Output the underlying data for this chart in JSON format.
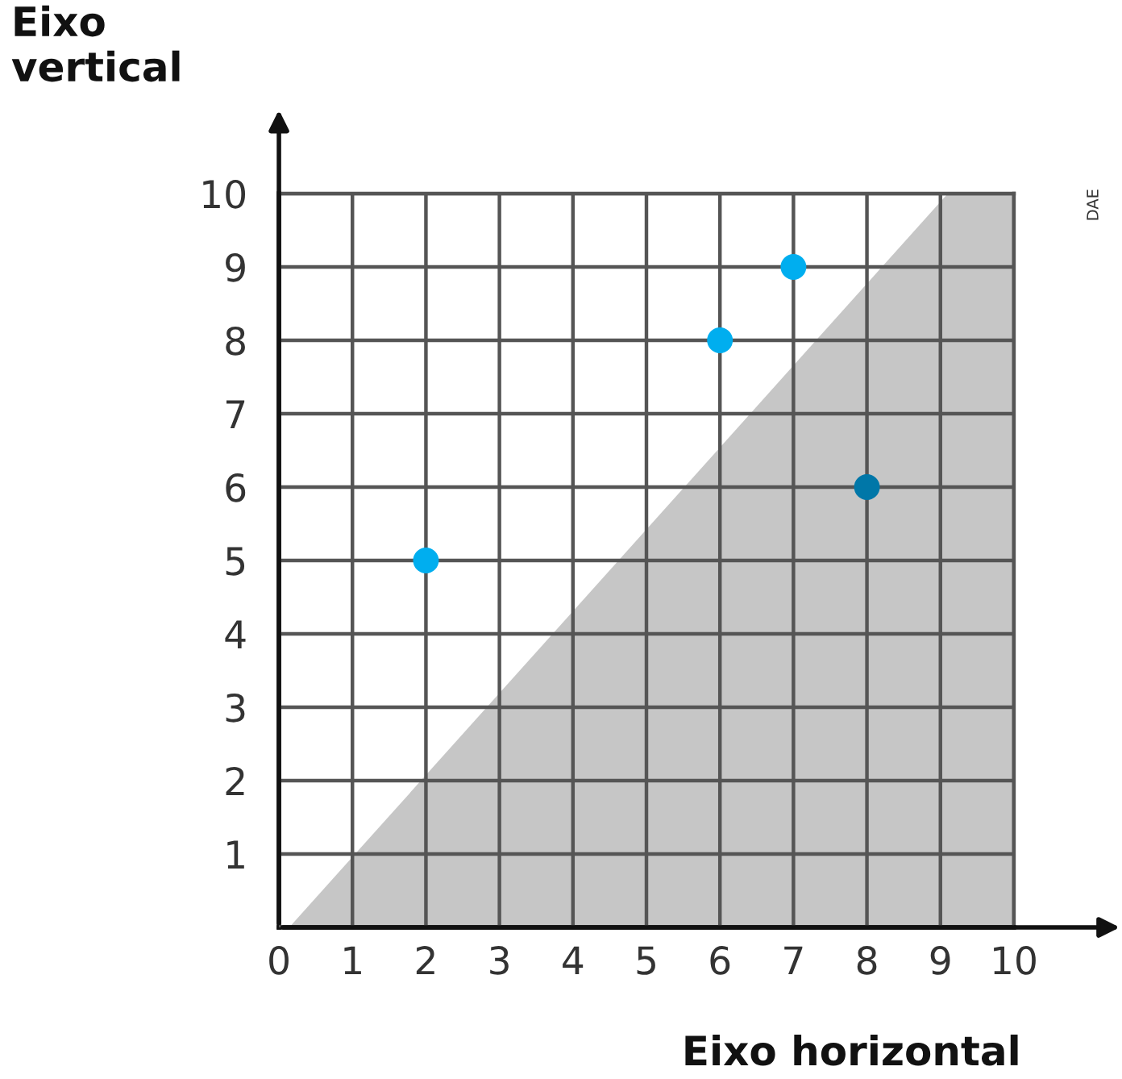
{
  "chart_data": {
    "type": "scatter",
    "xlabel": "Eixo horizontal",
    "ylabel": "Eixo vertical",
    "annotations": [
      "DAE"
    ],
    "xlim": [
      0,
      10
    ],
    "ylim": [
      0,
      10
    ],
    "xticks": [
      0,
      1,
      2,
      3,
      4,
      5,
      6,
      7,
      8,
      9,
      10
    ],
    "yticks": [
      1,
      2,
      3,
      4,
      5,
      6,
      7,
      8,
      9,
      10
    ],
    "grid": true,
    "legend": false,
    "series": [
      {
        "type": "area",
        "color": "#bcbcbc",
        "x": [
          0.14,
          9.1,
          10
        ],
        "values": [
          0,
          10,
          10
        ]
      },
      {
        "x": [
          2,
          6,
          7
        ],
        "values": [
          5,
          8,
          9
        ],
        "color": "#00aeef",
        "marker": "circle"
      },
      {
        "x": [
          8
        ],
        "values": [
          6
        ],
        "color": "#0077a8",
        "marker": "circle"
      }
    ]
  }
}
